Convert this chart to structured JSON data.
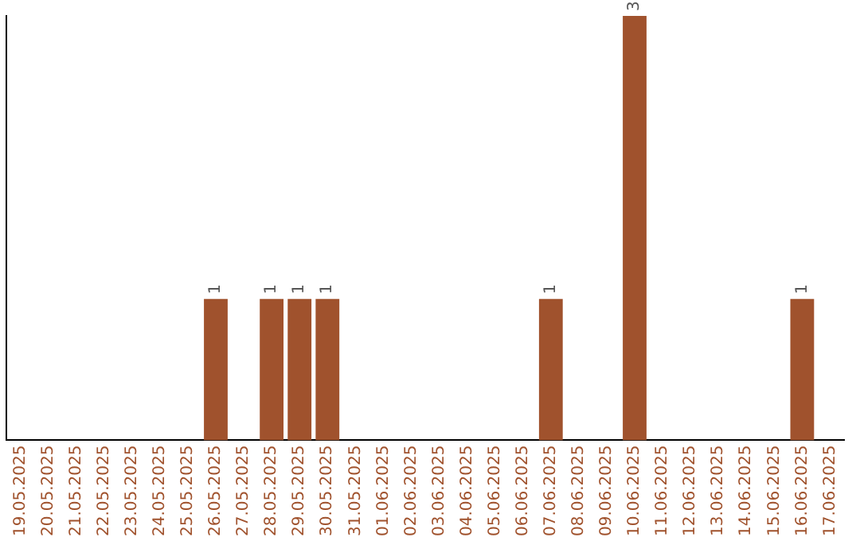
{
  "chart_data": {
    "type": "bar",
    "categories": [
      "19.05.2025",
      "20.05.2025",
      "21.05.2025",
      "22.05.2025",
      "23.05.2025",
      "24.05.2025",
      "25.05.2025",
      "26.05.2025",
      "27.05.2025",
      "28.05.2025",
      "29.05.2025",
      "30.05.2025",
      "31.05.2025",
      "01.06.2025",
      "02.06.2025",
      "03.06.2025",
      "04.06.2025",
      "05.06.2025",
      "06.06.2025",
      "07.06.2025",
      "08.06.2025",
      "09.06.2025",
      "10.06.2025",
      "11.06.2025",
      "12.06.2025",
      "13.06.2025",
      "14.06.2025",
      "15.06.2025",
      "16.06.2025",
      "17.06.2025"
    ],
    "values": [
      0,
      0,
      0,
      0,
      0,
      0,
      0,
      1,
      0,
      1,
      1,
      1,
      0,
      0,
      0,
      0,
      0,
      0,
      0,
      1,
      0,
      0,
      3,
      0,
      0,
      0,
      0,
      0,
      1,
      0
    ],
    "value_labels": [
      null,
      null,
      null,
      null,
      null,
      null,
      null,
      "1",
      null,
      "1",
      "1",
      "1",
      null,
      null,
      null,
      null,
      null,
      null,
      null,
      "1",
      null,
      null,
      "3",
      null,
      null,
      null,
      null,
      null,
      "1",
      null
    ],
    "color": "#a0522d",
    "grid": false,
    "legend": false,
    "tick_labels": "x"
  }
}
